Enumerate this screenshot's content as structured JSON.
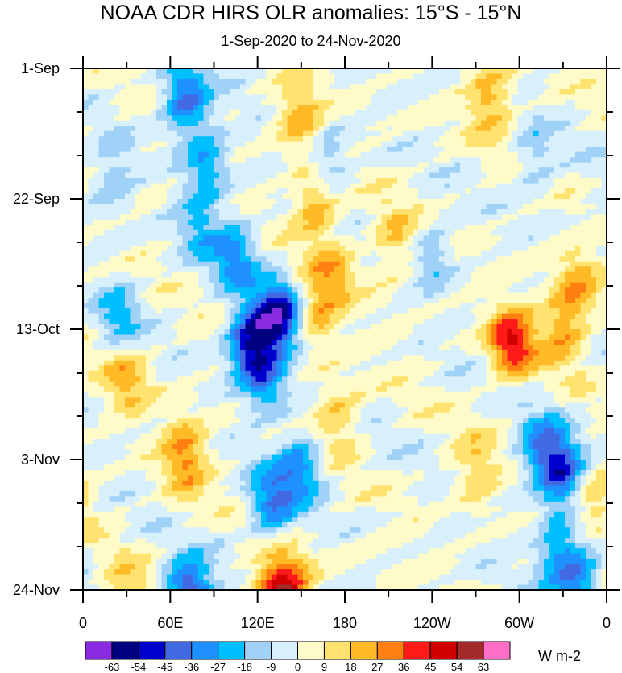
{
  "chart_data": {
    "type": "heatmap",
    "title": "NOAA CDR HIRS OLR anomalies: 15°S - 15°N",
    "subtitle": "1-Sep-2020 to 24-Nov-2020",
    "x_tick_labels": [
      "0",
      "60E",
      "120E",
      "180",
      "120W",
      "60W",
      "0"
    ],
    "x_range_deg_east": [
      0,
      360
    ],
    "y_tick_labels": [
      "1-Sep",
      "22-Sep",
      "13-Oct",
      "3-Nov",
      "24-Nov"
    ],
    "time_range": [
      "2020-09-01",
      "2020-11-24"
    ],
    "units": "W m-2",
    "colorbar_levels": [
      -63,
      -54,
      -45,
      -36,
      -27,
      -18,
      -9,
      0,
      9,
      18,
      27,
      36,
      45,
      54,
      63
    ],
    "colorbar_colors": [
      "#8a2be2",
      "#000080",
      "#0000cd",
      "#4169e1",
      "#1e90ff",
      "#00bfff",
      "#a0d2f8",
      "#d8f0fb",
      "#fffbc8",
      "#ffe36e",
      "#ffba26",
      "#ff7f11",
      "#ff1a1a",
      "#d10000",
      "#a52a2a",
      "#ff6ec7"
    ],
    "anomaly_features": [
      {
        "lon": 70,
        "day": 5,
        "value": -40
      },
      {
        "lon": 85,
        "day": 15,
        "value": -25
      },
      {
        "lon": 105,
        "day": 30,
        "value": -30
      },
      {
        "lon": 115,
        "day": 44,
        "value": -50
      },
      {
        "lon": 135,
        "day": 40,
        "value": -55
      },
      {
        "lon": 125,
        "day": 50,
        "value": -30
      },
      {
        "lon": 130,
        "day": 70,
        "value": -35
      },
      {
        "lon": 150,
        "day": 64,
        "value": -30
      },
      {
        "lon": 72,
        "day": 85,
        "value": -55
      },
      {
        "lon": 80,
        "day": 72,
        "value": -20
      },
      {
        "lon": 80,
        "day": 25,
        "value": -20
      },
      {
        "lon": 168,
        "day": 15,
        "value": -20
      },
      {
        "lon": 150,
        "day": 8,
        "value": 25
      },
      {
        "lon": 160,
        "day": 22,
        "value": 28
      },
      {
        "lon": 172,
        "day": 33,
        "value": 20
      },
      {
        "lon": 160,
        "day": 40,
        "value": 22
      },
      {
        "lon": 70,
        "day": 62,
        "value": 30
      },
      {
        "lon": 78,
        "day": 72,
        "value": 22
      },
      {
        "lon": 140,
        "day": 83,
        "value": 38
      },
      {
        "lon": 128,
        "day": 86,
        "value": 30
      },
      {
        "lon": 175,
        "day": 56,
        "value": 20
      },
      {
        "lon": 295,
        "day": 44,
        "value": 45
      },
      {
        "lon": 330,
        "day": 42,
        "value": 25
      },
      {
        "lon": 340,
        "day": 35,
        "value": 22
      },
      {
        "lon": 280,
        "day": 5,
        "value": 25
      },
      {
        "lon": 215,
        "day": 28,
        "value": 20
      },
      {
        "lon": 270,
        "day": 65,
        "value": 18
      },
      {
        "lon": 30,
        "day": 50,
        "value": 22
      },
      {
        "lon": 330,
        "day": 65,
        "value": -42
      },
      {
        "lon": 315,
        "day": 61,
        "value": -30
      },
      {
        "lon": 340,
        "day": 82,
        "value": -35
      },
      {
        "lon": 325,
        "day": 78,
        "value": -25
      },
      {
        "lon": 240,
        "day": 30,
        "value": -18
      },
      {
        "lon": 310,
        "day": 15,
        "value": -15
      },
      {
        "lon": 20,
        "day": 18,
        "value": -15
      },
      {
        "lon": 25,
        "day": 40,
        "value": -20
      },
      {
        "lon": 350,
        "day": 70,
        "value": 20
      },
      {
        "lon": 30,
        "day": 85,
        "value": 18
      }
    ]
  }
}
